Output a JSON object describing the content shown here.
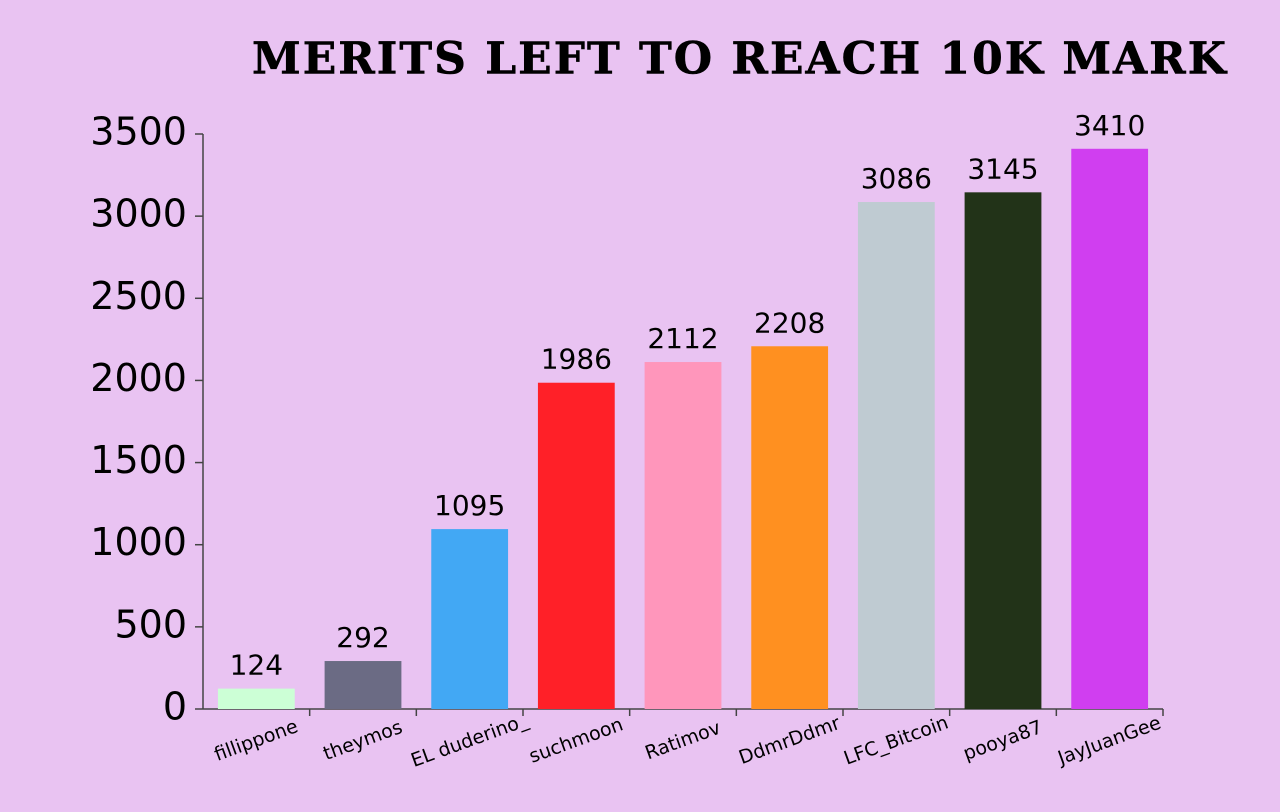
{
  "chart_data": {
    "type": "bar",
    "title": "MERITS LEFT TO REACH 10K MARK",
    "categories": [
      "fillippone",
      "theymos",
      "EL duderino_",
      "suchmoon",
      "Ratimov",
      "DdmrDdmr",
      "LFC_Bitcoin",
      "pooya87",
      "JayJuanGee"
    ],
    "values": [
      124,
      292,
      1095,
      1986,
      2112,
      2208,
      3086,
      3145,
      3410
    ],
    "colors": [
      "#ccffd6",
      "#6b6b84",
      "#42a8f4",
      "#ff2028",
      "#ff96bb",
      "#ff9020",
      "#bfcbd2",
      "#223318",
      "#d03ef0"
    ],
    "ylim": [
      0,
      3500
    ],
    "yticks": [
      0,
      500,
      1000,
      1500,
      2000,
      2500,
      3000,
      3500
    ],
    "grid": false
  }
}
